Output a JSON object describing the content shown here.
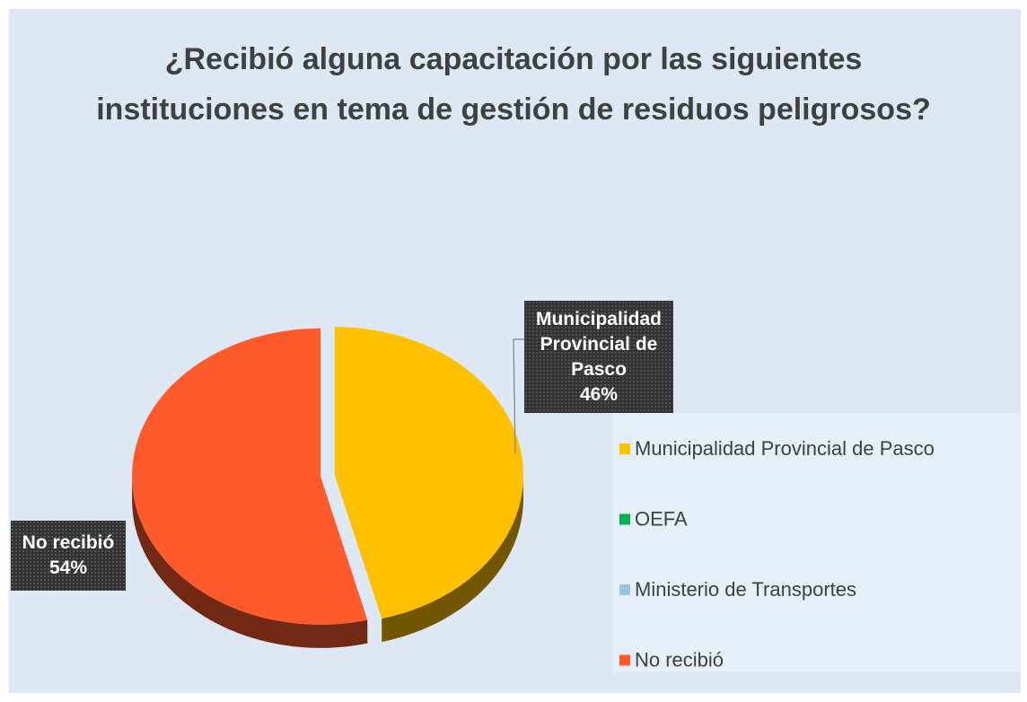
{
  "chart_data": {
    "type": "pie",
    "title": "¿Recibió alguna capacitación por las siguientes instituciones en tema de gestión de residuos peligrosos?",
    "categories": [
      "Municipalidad Provincial de Pasco",
      "OEFA",
      "Ministerio de Transportes",
      "No recibió"
    ],
    "values": [
      46,
      0,
      0,
      54
    ],
    "value_labels": [
      "46%",
      null,
      null,
      "54%"
    ],
    "colors": [
      "#ffc000",
      "#00b050",
      "#9dc3e6",
      "#fe5a2b"
    ],
    "legend": "right"
  }
}
